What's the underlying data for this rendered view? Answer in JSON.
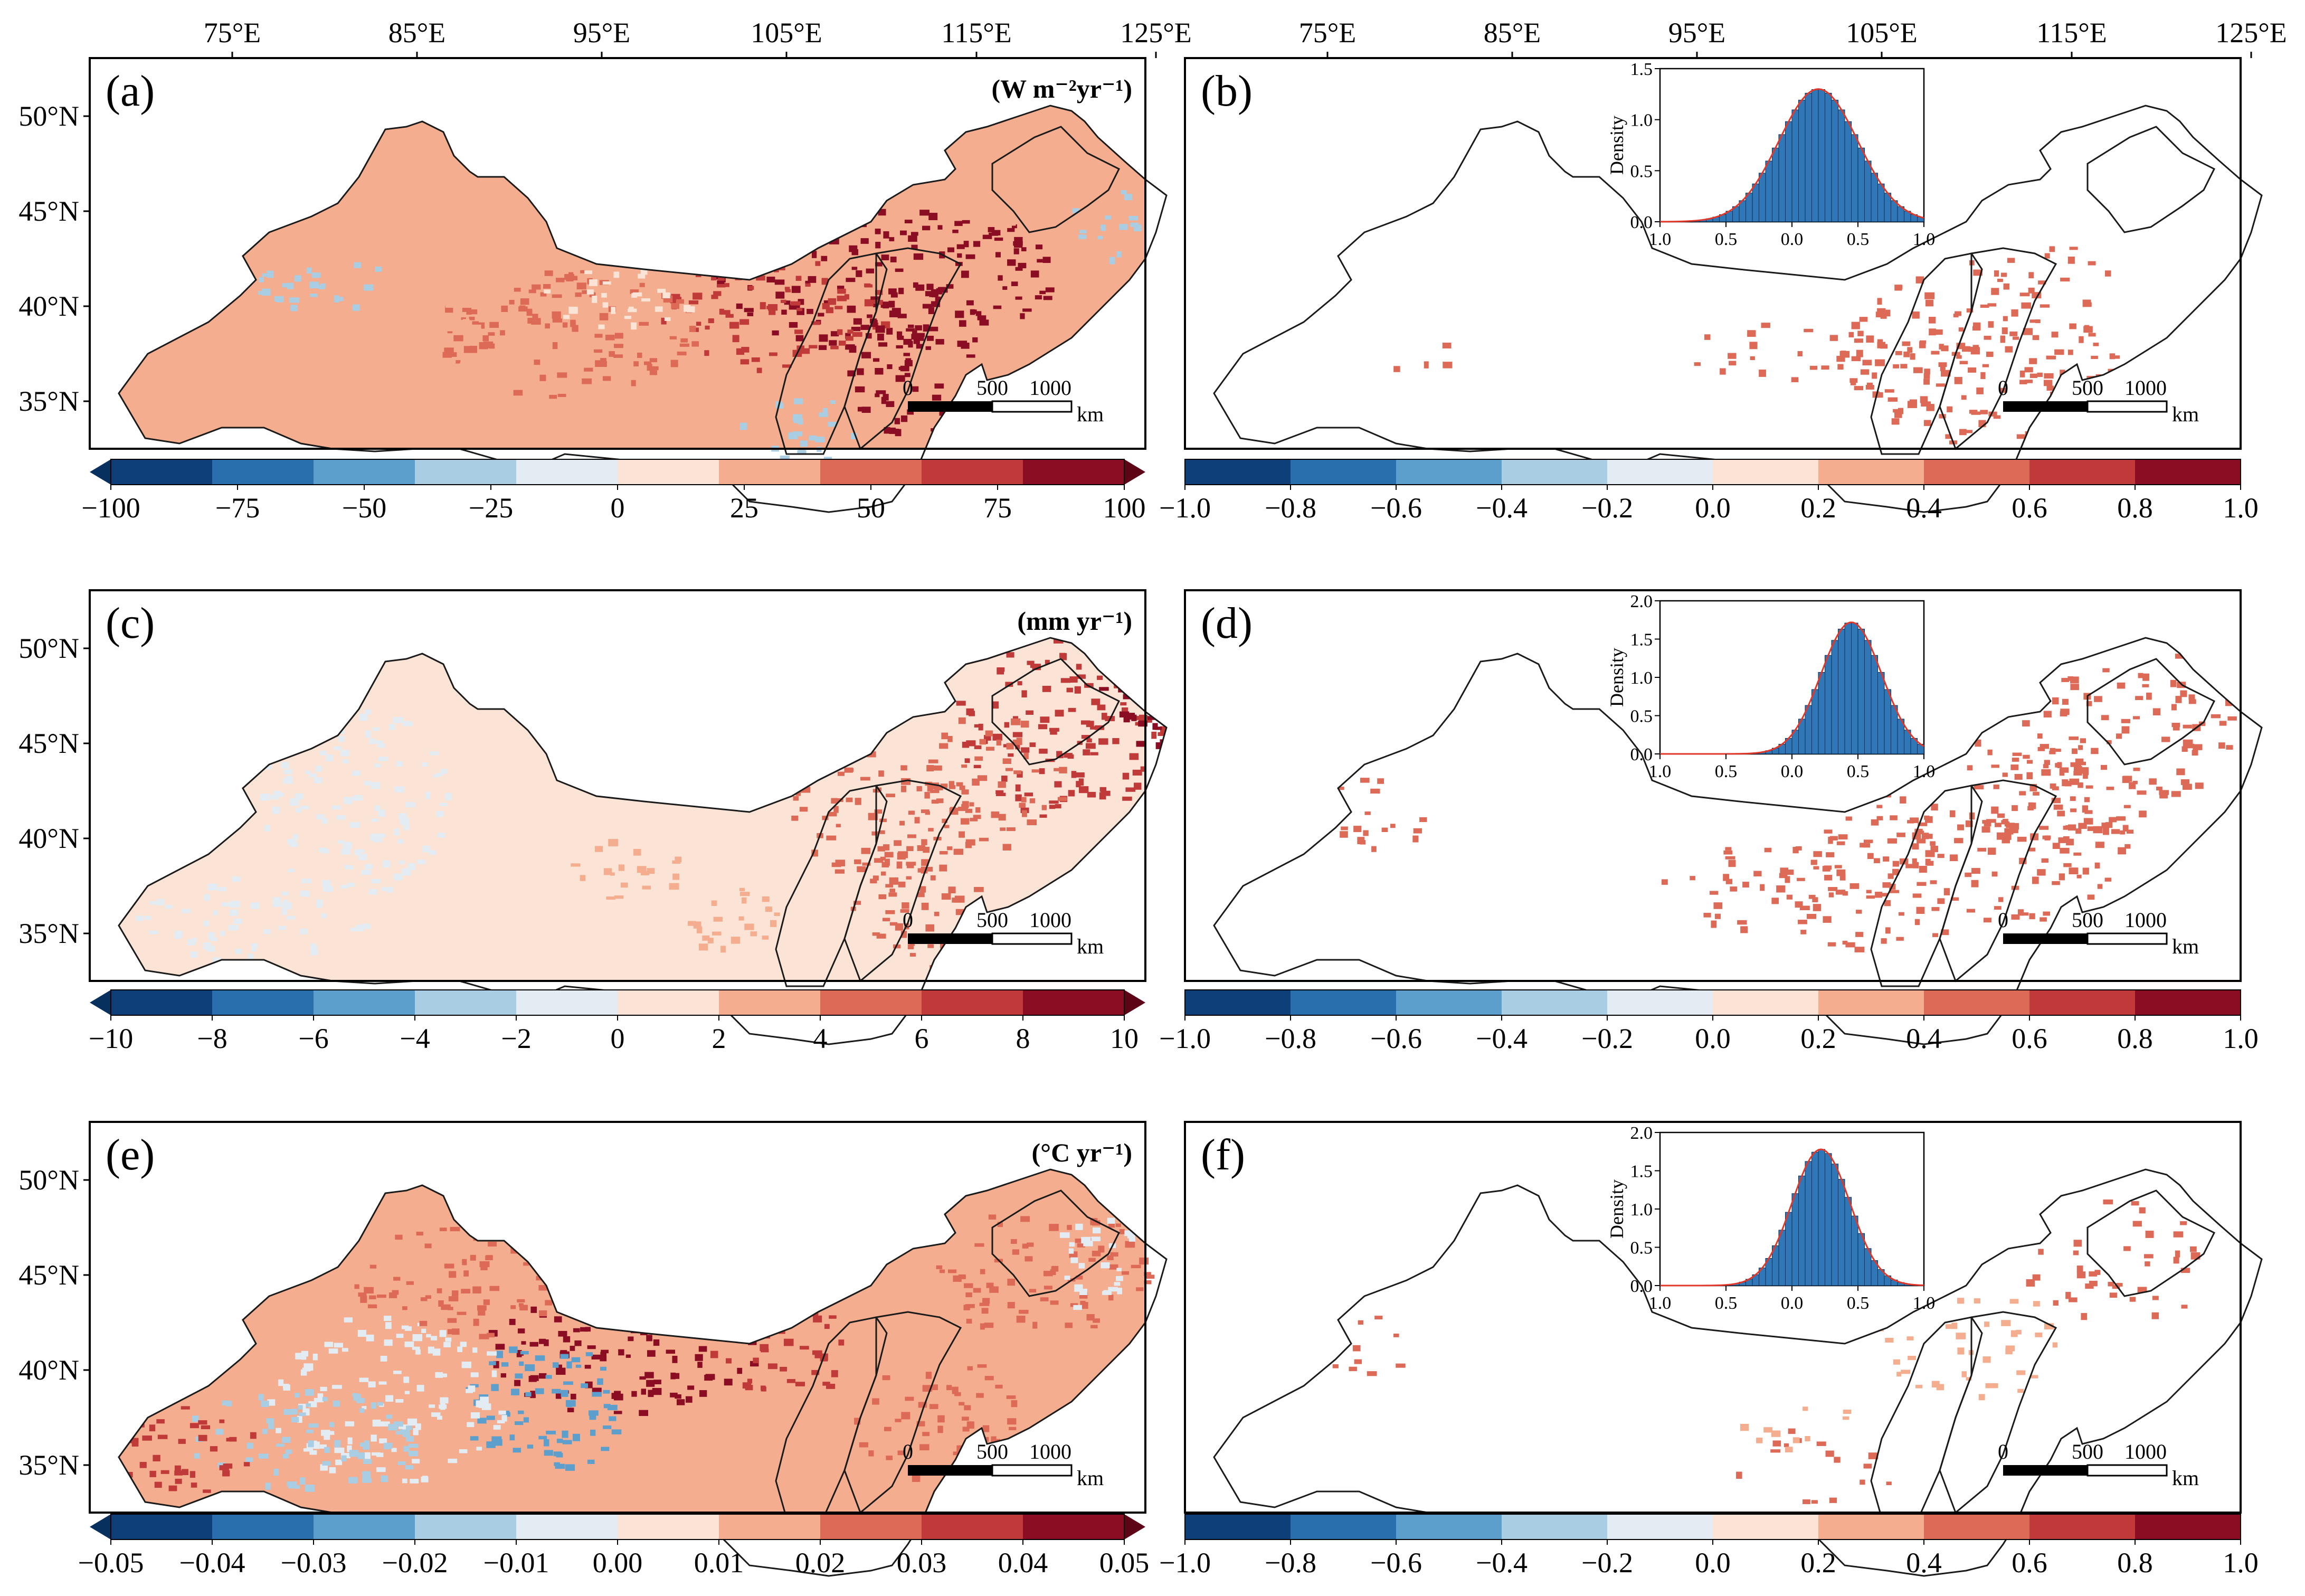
{
  "longitude_labels": [
    "75°E",
    "85°E",
    "95°E",
    "105°E",
    "115°E",
    "125°E"
  ],
  "latitude_labels": [
    "50°N",
    "45°N",
    "40°N",
    "35°N"
  ],
  "scalebar": {
    "ticks": [
      "0",
      "500",
      "1000"
    ],
    "unit": "km"
  },
  "colors": {
    "diverging": [
      "#0e3f78",
      "#2a6fad",
      "#5d9fcc",
      "#a9cde2",
      "#e3ecf3",
      "#fbe4d6",
      "#f4ad8e",
      "#dd6a57",
      "#c03a3a",
      "#8b0d23"
    ],
    "hist_bar": "#2f77b6",
    "density_line": "#e0372a",
    "boundary": "#1a1a1a"
  },
  "panels": [
    {
      "id": "a",
      "label": "(a)",
      "unit": "(W m⁻²yr⁻¹)",
      "colorbar_ticks": [
        "−100",
        "−75",
        "−50",
        "−25",
        "0",
        "25",
        "50",
        "75",
        "100"
      ],
      "extend": true
    },
    {
      "id": "b",
      "label": "(b)",
      "colorbar_ticks": [
        "−1.0",
        "−0.8",
        "−0.6",
        "−0.4",
        "−0.2",
        "0.0",
        "0.2",
        "0.4",
        "0.6",
        "0.8",
        "1.0"
      ],
      "extend": false,
      "inset": {
        "ylabel": "Density",
        "yticks": [
          "0.0",
          "0.5",
          "1.0",
          "1.5"
        ],
        "ymax": 1.5,
        "xticks": [
          "1.0",
          "0.5",
          "0.0",
          "0.5",
          "1.0"
        ],
        "mean": 0.2,
        "sd": 0.3,
        "peak": 1.3
      }
    },
    {
      "id": "c",
      "label": "(c)",
      "unit": "(mm yr⁻¹)",
      "colorbar_ticks": [
        "−10",
        "−8",
        "−6",
        "−4",
        "−2",
        "0",
        "2",
        "4",
        "6",
        "8",
        "10"
      ],
      "extend": true
    },
    {
      "id": "d",
      "label": "(d)",
      "colorbar_ticks": [
        "−1.0",
        "−0.8",
        "−0.6",
        "−0.4",
        "−0.2",
        "0.0",
        "0.2",
        "0.4",
        "0.6",
        "0.8",
        "1.0"
      ],
      "extend": false,
      "inset": {
        "ylabel": "Density",
        "yticks": [
          "0.0",
          "0.5",
          "1.0",
          "1.5",
          "2.0"
        ],
        "ymax": 2.0,
        "xticks": [
          "1.0",
          "0.5",
          "0.0",
          "0.5",
          "1.0"
        ],
        "mean": 0.45,
        "sd": 0.23,
        "peak": 1.72
      }
    },
    {
      "id": "e",
      "label": "(e)",
      "unit": "(°C yr⁻¹)",
      "colorbar_ticks": [
        "−0.05",
        "−0.04",
        "−0.03",
        "−0.02",
        "−0.01",
        "0.00",
        "0.01",
        "0.02",
        "0.03",
        "0.04",
        "0.05"
      ],
      "extend": true
    },
    {
      "id": "f",
      "label": "(f)",
      "colorbar_ticks": [
        "−1.0",
        "−0.8",
        "−0.6",
        "−0.4",
        "−0.2",
        "0.0",
        "0.2",
        "0.4",
        "0.6",
        "0.8",
        "1.0"
      ],
      "extend": false,
      "inset": {
        "ylabel": "Density",
        "yticks": [
          "0.0",
          "0.5",
          "1.0",
          "1.5",
          "2.0"
        ],
        "ymax": 2.0,
        "xticks": [
          "1.0",
          "0.5",
          "0.0",
          "0.5",
          "1.0"
        ],
        "mean": 0.22,
        "sd": 0.22,
        "peak": 1.78
      }
    }
  ]
}
